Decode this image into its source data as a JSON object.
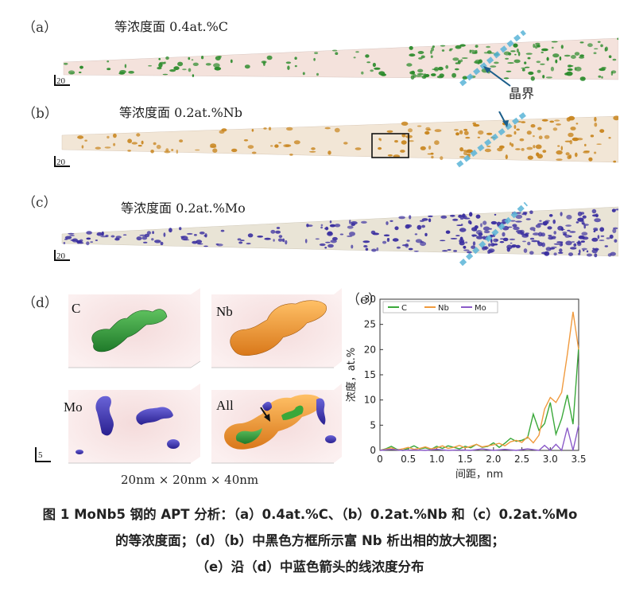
{
  "panels": {
    "a": {
      "label": "（a）",
      "title": "等浓度面 0.4at.%C",
      "scale": "20",
      "color": "#2a8a2a"
    },
    "b": {
      "label": "（b）",
      "title": "等浓度面 0.2at.%Nb",
      "scale": "20",
      "color": "#c8841c"
    },
    "c": {
      "label": "（c）",
      "title": "等浓度面 0.2at.%Mo",
      "scale": "20",
      "color": "#3a2fa0"
    },
    "grain_boundary_label": "晶界"
  },
  "panel_d": {
    "label": "（d）",
    "boxes": [
      {
        "label": "C"
      },
      {
        "label": "Nb"
      },
      {
        "label": "Mo"
      },
      {
        "label": "All"
      }
    ],
    "scale": "5",
    "dims": "20nm × 20nm × 40nm"
  },
  "chart_data": {
    "type": "line",
    "panel_label": "（e）",
    "xlabel": "间距，nm",
    "ylabel": "浓度，at.%",
    "xlim": [
      0,
      3.5
    ],
    "ylim": [
      0,
      30
    ],
    "xticks": [
      "0",
      "0.5",
      "1.0",
      "1.5",
      "2.0",
      "2.5",
      "3.0",
      "3.5"
    ],
    "yticks": [
      "0",
      "5",
      "10",
      "15",
      "20",
      "25",
      "30"
    ],
    "legend_position": "top-left",
    "series": [
      {
        "name": "C",
        "color": "#3aa83a",
        "x": [
          0,
          0.1,
          0.2,
          0.3,
          0.4,
          0.5,
          0.6,
          0.7,
          0.8,
          0.9,
          1.0,
          1.1,
          1.2,
          1.3,
          1.4,
          1.5,
          1.6,
          1.7,
          1.8,
          1.9,
          2.0,
          2.1,
          2.2,
          2.3,
          2.4,
          2.5,
          2.6,
          2.7,
          2.8,
          2.9,
          3.0,
          3.1,
          3.2,
          3.3,
          3.4,
          3.5
        ],
        "values": [
          0,
          0.3,
          0.8,
          0.2,
          0,
          0.4,
          0.9,
          0.3,
          0.5,
          0.2,
          0.8,
          0.4,
          0.9,
          0.6,
          0.3,
          0.8,
          0.5,
          1.2,
          0.6,
          0.8,
          1.5,
          0.6,
          1.4,
          2.4,
          1.8,
          2.0,
          2.5,
          7.2,
          4.0,
          5.3,
          9.5,
          3.2,
          6.3,
          11.0,
          5.2,
          20.5
        ]
      },
      {
        "name": "Nb",
        "color": "#f09a3e",
        "x": [
          0,
          0.1,
          0.2,
          0.3,
          0.4,
          0.5,
          0.6,
          0.7,
          0.8,
          0.9,
          1.0,
          1.1,
          1.2,
          1.3,
          1.4,
          1.5,
          1.6,
          1.7,
          1.8,
          1.9,
          2.0,
          2.1,
          2.2,
          2.3,
          2.4,
          2.5,
          2.6,
          2.7,
          2.8,
          2.9,
          3.0,
          3.1,
          3.2,
          3.3,
          3.4,
          3.5
        ],
        "values": [
          0,
          0.2,
          0.5,
          0.1,
          0.3,
          0.6,
          0.2,
          0.4,
          0.7,
          0.3,
          0.5,
          0.9,
          0.4,
          0.6,
          1.0,
          0.5,
          0.8,
          1.2,
          0.7,
          0.9,
          1.1,
          1.4,
          0.9,
          1.7,
          2.0,
          1.6,
          2.7,
          1.5,
          3.0,
          8.2,
          10.5,
          9.5,
          11.5,
          19.0,
          27.5,
          20.0
        ]
      },
      {
        "name": "Mo",
        "color": "#8a5ac8",
        "x": [
          0,
          0.2,
          0.4,
          0.6,
          0.8,
          1.0,
          1.2,
          1.4,
          1.6,
          1.8,
          2.0,
          2.2,
          2.4,
          2.6,
          2.8,
          2.9,
          3.0,
          3.1,
          3.2,
          3.3,
          3.4,
          3.5
        ],
        "values": [
          0,
          0.2,
          0,
          0.1,
          0,
          0.2,
          0,
          0.1,
          0,
          0.3,
          0,
          0.2,
          0,
          0.3,
          0,
          1.0,
          0,
          1.2,
          0,
          4.5,
          0,
          5.0
        ]
      }
    ]
  },
  "caption": {
    "line1": "图 1 MoNb5 钢的 APT 分析：（a）0.4at.%C、（b）0.2at.%Nb 和（c）0.2at.%Mo",
    "line2": "的等浓度面；（d）（b）中黑色方框所示富 Nb 析出相的放大视图；",
    "line3": "（e）沿（d）中蓝色箭头的线浓度分布"
  }
}
